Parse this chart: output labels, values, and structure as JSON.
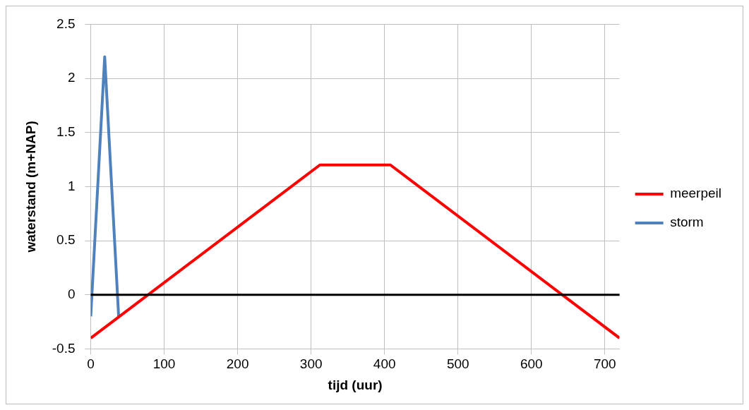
{
  "chart_data": {
    "type": "line",
    "xlabel": "tijd (uur)",
    "ylabel": "waterstand (m+NAP)",
    "xlim": [
      0,
      720
    ],
    "xticks": [
      0,
      100,
      200,
      300,
      400,
      500,
      600,
      700
    ],
    "ylim": [
      -0.5,
      2.5
    ],
    "yticks": [
      -0.5,
      0,
      0.5,
      1,
      1.5,
      2,
      2.5
    ],
    "grid": true,
    "legend": "right",
    "marker": "none",
    "line_style": "solid",
    "ref_lines": [
      {
        "axis": "y",
        "value": 0,
        "color": "#000000"
      }
    ],
    "series": [
      {
        "name": "meerpeil",
        "color": "#ff0000",
        "x": [
          0,
          312,
          408,
          720
        ],
        "values": [
          -0.4,
          1.2,
          1.2,
          -0.4
        ]
      },
      {
        "name": "storm",
        "color": "#4f81bd",
        "x": [
          0,
          19,
          38
        ],
        "values": [
          -0.2,
          2.2,
          -0.2
        ]
      }
    ]
  }
}
